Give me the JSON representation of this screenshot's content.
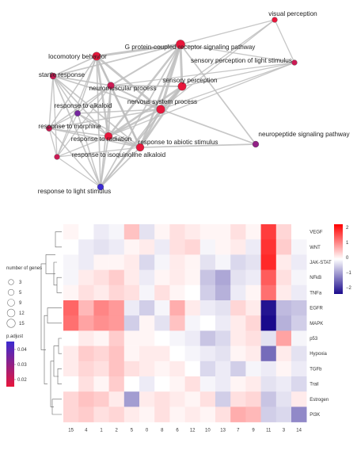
{
  "network": {
    "nodes": [
      {
        "id": "visual-perception",
        "label": "visual perception",
        "size": 3,
        "padj": 0.02
      },
      {
        "id": "gpcr",
        "label": "G protein-coupled receptor signaling pathway",
        "size": 15,
        "padj": 0.02
      },
      {
        "id": "locomotory",
        "label": "locomotory behavior",
        "size": 12,
        "padj": 0.02
      },
      {
        "id": "sensory-light",
        "label": "sensory perception of light stimulus",
        "size": 3,
        "padj": 0.025
      },
      {
        "id": "startle",
        "label": "startle response",
        "size": 5,
        "padj": 0.025
      },
      {
        "id": "sensory",
        "label": "sensory perception",
        "size": 12,
        "padj": 0.02
      },
      {
        "id": "neuromuscular",
        "label": "neuromuscular process",
        "size": 7,
        "padj": 0.025
      },
      {
        "id": "alkaloid",
        "label": "response to alkaloid",
        "size": 4,
        "padj": 0.04
      },
      {
        "id": "nervous",
        "label": "nervous system process",
        "size": 13,
        "padj": 0.02
      },
      {
        "id": "morphine",
        "label": "response to morphine",
        "size": 4,
        "padj": 0.025
      },
      {
        "id": "neuropeptide",
        "label": "neuropeptide signaling pathway",
        "size": 5,
        "padj": 0.035
      },
      {
        "id": "radiation",
        "label": "response to radiation",
        "size": 10,
        "padj": 0.02
      },
      {
        "id": "abiotic",
        "label": "response to abiotic stimulus",
        "size": 10,
        "padj": 0.02
      },
      {
        "id": "isoquinoline",
        "label": "response to isoquinoline alkaloid",
        "size": 3,
        "padj": 0.025
      },
      {
        "id": "light-stim",
        "label": "response to light stimulus",
        "size": 5,
        "padj": 0.05
      }
    ],
    "edges": [
      [
        "visual-perception",
        "gpcr"
      ],
      [
        "visual-perception",
        "sensory-light"
      ],
      [
        "visual-perception",
        "sensory"
      ],
      [
        "visual-perception",
        "nervous"
      ],
      [
        "sensory-light",
        "gpcr"
      ],
      [
        "sensory-light",
        "sensory"
      ],
      [
        "sensory-light",
        "nervous"
      ],
      [
        "sensory-light",
        "neuromuscular"
      ],
      [
        "sensory-light",
        "radiation"
      ],
      [
        "gpcr",
        "locomotory"
      ],
      [
        "gpcr",
        "sensory"
      ],
      [
        "gpcr",
        "nervous"
      ],
      [
        "gpcr",
        "neuromuscular"
      ],
      [
        "gpcr",
        "startle"
      ],
      [
        "gpcr",
        "radiation"
      ],
      [
        "gpcr",
        "abiotic"
      ],
      [
        "gpcr",
        "light-stim"
      ],
      [
        "gpcr",
        "neuropeptide"
      ],
      [
        "locomotory",
        "startle"
      ],
      [
        "locomotory",
        "neuromuscular"
      ],
      [
        "locomotory",
        "alkaloid"
      ],
      [
        "locomotory",
        "morphine"
      ],
      [
        "locomotory",
        "radiation"
      ],
      [
        "locomotory",
        "isoquinoline"
      ],
      [
        "locomotory",
        "light-stim"
      ],
      [
        "locomotory",
        "nervous"
      ],
      [
        "locomotory",
        "abiotic"
      ],
      [
        "startle",
        "neuromuscular"
      ],
      [
        "startle",
        "alkaloid"
      ],
      [
        "startle",
        "morphine"
      ],
      [
        "startle",
        "radiation"
      ],
      [
        "startle",
        "isoquinoline"
      ],
      [
        "startle",
        "light-stim"
      ],
      [
        "startle",
        "abiotic"
      ],
      [
        "startle",
        "nervous"
      ],
      [
        "neuromuscular",
        "nervous"
      ],
      [
        "neuromuscular",
        "alkaloid"
      ],
      [
        "neuromuscular",
        "morphine"
      ],
      [
        "neuromuscular",
        "radiation"
      ],
      [
        "neuromuscular",
        "isoquinoline"
      ],
      [
        "neuromuscular",
        "abiotic"
      ],
      [
        "neuromuscular",
        "light-stim"
      ],
      [
        "neuromuscular",
        "sensory"
      ],
      [
        "sensory",
        "nervous"
      ],
      [
        "sensory",
        "radiation"
      ],
      [
        "sensory",
        "abiotic"
      ],
      [
        "sensory",
        "light-stim"
      ],
      [
        "nervous",
        "radiation"
      ],
      [
        "nervous",
        "abiotic"
      ],
      [
        "nervous",
        "neuropeptide"
      ],
      [
        "nervous",
        "light-stim"
      ],
      [
        "nervous",
        "morphine"
      ],
      [
        "nervous",
        "alkaloid"
      ],
      [
        "alkaloid",
        "morphine"
      ],
      [
        "alkaloid",
        "radiation"
      ],
      [
        "alkaloid",
        "isoquinoline"
      ],
      [
        "alkaloid",
        "light-stim"
      ],
      [
        "alkaloid",
        "abiotic"
      ],
      [
        "morphine",
        "radiation"
      ],
      [
        "morphine",
        "isoquinoline"
      ],
      [
        "morphine",
        "light-stim"
      ],
      [
        "morphine",
        "abiotic"
      ],
      [
        "radiation",
        "isoquinoline"
      ],
      [
        "radiation",
        "abiotic"
      ],
      [
        "radiation",
        "light-stim"
      ],
      [
        "isoquinoline",
        "light-stim"
      ],
      [
        "abiotic",
        "light-stim"
      ],
      [
        "abiotic",
        "neuropeptide"
      ],
      [
        "abiotic",
        "isoquinoline"
      ]
    ]
  },
  "legend": {
    "size_title": "number of genes",
    "size_values": [
      "3",
      "5",
      "9",
      "12",
      "15"
    ],
    "color_title": "p.adjust",
    "color_ticks": [
      "0.04",
      "0.03",
      "0.02"
    ],
    "color_low": "#e8163b",
    "color_high": "#3b2bd1"
  },
  "heatmap": {
    "rows": [
      "VEGF",
      "WNT",
      "JAK-STAT",
      "NFkB",
      "TNFa",
      "EGFR",
      "MAPK",
      "p53",
      "Hypoxia",
      "TGFb",
      "Trail",
      "Estrogen",
      "PI3K"
    ],
    "cols": [
      "15",
      "4",
      "1",
      "2",
      "5",
      "0",
      "8",
      "6",
      "12",
      "10",
      "13",
      "7",
      "9",
      "11",
      "3",
      "14"
    ],
    "values": [
      [
        0.1,
        0.0,
        -0.2,
        -0.1,
        0.6,
        -0.3,
        0.1,
        0.3,
        0.2,
        0.1,
        0.1,
        0.3,
        0.1,
        1.9,
        0.4,
        0.0
      ],
      [
        0.0,
        -0.2,
        -0.3,
        -0.2,
        0.1,
        0.2,
        -0.2,
        0.3,
        0.4,
        -0.1,
        0.1,
        0.2,
        -0.2,
        2.0,
        0.5,
        -0.1
      ],
      [
        -0.1,
        -0.2,
        0.1,
        0.1,
        0.2,
        -0.4,
        -0.1,
        0.2,
        0.1,
        -0.3,
        -0.1,
        -0.4,
        -0.3,
        2.1,
        0.2,
        -0.2
      ],
      [
        -0.1,
        0.2,
        0.3,
        0.5,
        0.2,
        -0.2,
        0.1,
        0.2,
        0.1,
        -0.6,
        -0.9,
        -0.3,
        -0.2,
        1.6,
        0.3,
        -0.1
      ],
      [
        0.1,
        0.3,
        0.2,
        0.4,
        0.3,
        -0.1,
        0.3,
        0.1,
        0.0,
        -0.5,
        -0.8,
        -0.2,
        0.1,
        1.4,
        0.2,
        -0.2
      ],
      [
        1.5,
        0.7,
        1.2,
        1.0,
        -0.2,
        -0.5,
        -0.1,
        0.8,
        0.2,
        -0.2,
        -0.3,
        0.4,
        0.2,
        -2.4,
        -0.7,
        -0.6
      ],
      [
        1.4,
        0.9,
        1.1,
        1.0,
        -0.5,
        0.1,
        -0.3,
        0.6,
        -0.1,
        0.0,
        -0.2,
        0.2,
        0.4,
        -2.6,
        -0.8,
        -0.5
      ],
      [
        0.0,
        0.2,
        0.1,
        0.5,
        0.1,
        0.1,
        0.0,
        -0.1,
        -0.2,
        -0.6,
        -0.4,
        0.2,
        0.3,
        -0.3,
        0.9,
        -0.1
      ],
      [
        0.2,
        0.5,
        0.4,
        0.6,
        0.1,
        0.2,
        0.2,
        0.0,
        -0.1,
        -0.2,
        -0.3,
        0.1,
        0.2,
        -1.5,
        0.2,
        -0.3
      ],
      [
        0.2,
        0.4,
        0.3,
        0.6,
        0.3,
        0.2,
        0.1,
        0.2,
        0.0,
        -0.4,
        -0.2,
        -0.5,
        -0.1,
        -0.2,
        0.1,
        -0.2
      ],
      [
        0.0,
        0.3,
        0.1,
        0.5,
        0.0,
        -0.2,
        0.0,
        0.1,
        0.3,
        -0.1,
        -0.2,
        0.1,
        0.2,
        -0.3,
        -0.2,
        -0.4
      ],
      [
        0.4,
        0.6,
        0.5,
        0.2,
        -1.0,
        0.2,
        0.3,
        0.2,
        0.1,
        0.3,
        -0.5,
        0.3,
        0.4,
        -0.6,
        -0.3,
        0.2
      ],
      [
        0.4,
        0.5,
        0.3,
        0.4,
        0.2,
        0.1,
        0.3,
        0.1,
        0.2,
        0.1,
        0.3,
        0.8,
        0.7,
        -0.5,
        -0.4,
        -1.2
      ]
    ],
    "color_ticks": [
      "2",
      "1",
      "0",
      "−1",
      "−2"
    ],
    "color_min": -2.5,
    "color_max": 2.5,
    "color_neg": "#1a0a8c",
    "color_pos": "#ff0000",
    "color_mid": "#ffffff"
  }
}
